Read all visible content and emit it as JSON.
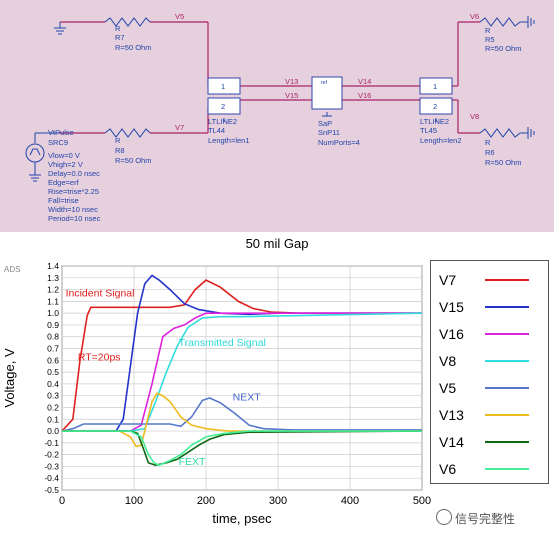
{
  "schematic": {
    "resistors": [
      {
        "id": "R7",
        "type_label": "R",
        "value": "R=50 Ohm"
      },
      {
        "id": "R8",
        "type_label": "R",
        "value": "R=50 Ohm"
      },
      {
        "id": "R5",
        "type_label": "R",
        "value": "R=50 Ohm"
      },
      {
        "id": "R6",
        "type_label": "R",
        "value": "R=50 Ohm"
      }
    ],
    "nodes": {
      "v5": "V5",
      "v7": "V7",
      "v13": "V13",
      "v15": "V15",
      "v14": "V14",
      "v16": "V16",
      "v6": "V6",
      "v8": "V8"
    },
    "source": {
      "type_label": "VtPulse",
      "id": "SRC9",
      "params": [
        "Vlow=0 V",
        "Vhigh=2 V",
        "Delay=0.0 nsec",
        "Edge=erf",
        "Rise=trise*2.25",
        "Fall=trise",
        "Width=10 nsec",
        "Period=10 nsec"
      ]
    },
    "tl44": {
      "type_label": "LTLINE2",
      "id": "TL44",
      "param": "Length=len1",
      "port1": "1",
      "port2": "2"
    },
    "tl45": {
      "type_label": "LTLINE2",
      "id": "TL45",
      "param": "Length=len2",
      "port1": "1",
      "port2": "2"
    },
    "sp": {
      "type_label": "SaP",
      "id": "SnP11",
      "param": "NumPorts=4",
      "ref": "ref"
    }
  },
  "caption": "50 mil Gap",
  "watermark": "信号完整性",
  "chart_data": {
    "type": "line",
    "corner_label": "ADS",
    "xlabel": "time, psec",
    "ylabel": "Voltage, V",
    "xlim": [
      0,
      500
    ],
    "ylim": [
      -0.5,
      1.4
    ],
    "xticks": [
      0,
      100,
      200,
      300,
      400,
      500
    ],
    "yticks": [
      1.4,
      1.3,
      1.2,
      1.1,
      1.0,
      0.9,
      0.8,
      0.7,
      0.6,
      0.5,
      0.4,
      0.3,
      0.2,
      0.1,
      0.0,
      -0.1,
      -0.2,
      -0.3,
      -0.4,
      -0.5
    ],
    "grid": true,
    "legend_position": "right",
    "annotations": [
      {
        "text": "Incident Signal",
        "x": 5,
        "y": 1.14,
        "color": "#e02020"
      },
      {
        "text": "RT=20ps",
        "x": 22,
        "y": 0.6,
        "color": "#e02020"
      },
      {
        "text": "Transmitted Signal",
        "x": 162,
        "y": 0.72,
        "color": "#2ed8d8"
      },
      {
        "text": "NEXT",
        "x": 237,
        "y": 0.26,
        "color": "#4466cc"
      },
      {
        "text": "FEXT",
        "x": 162,
        "y": -0.29,
        "color": "#2ed8a0"
      }
    ],
    "series": [
      {
        "name": "V7",
        "color": "#e02020",
        "points": [
          [
            0,
            0
          ],
          [
            15,
            0.1
          ],
          [
            25,
            0.6
          ],
          [
            35,
            0.98
          ],
          [
            40,
            1.05
          ],
          [
            60,
            1.05
          ],
          [
            110,
            1.05
          ],
          [
            130,
            1.05
          ],
          [
            150,
            1.05
          ],
          [
            170,
            1.07
          ],
          [
            185,
            1.2
          ],
          [
            200,
            1.28
          ],
          [
            220,
            1.22
          ],
          [
            245,
            1.1
          ],
          [
            265,
            1.04
          ],
          [
            290,
            1.01
          ],
          [
            330,
            1.0
          ],
          [
            500,
            1.0
          ]
        ]
      },
      {
        "name": "V15",
        "color": "#2233cc",
        "points": [
          [
            0,
            0
          ],
          [
            75,
            0
          ],
          [
            85,
            0.1
          ],
          [
            95,
            0.55
          ],
          [
            105,
            1.0
          ],
          [
            115,
            1.25
          ],
          [
            125,
            1.32
          ],
          [
            135,
            1.28
          ],
          [
            150,
            1.2
          ],
          [
            170,
            1.08
          ],
          [
            190,
            1.03
          ],
          [
            220,
            1.0
          ],
          [
            260,
            0.99
          ],
          [
            300,
            1.0
          ],
          [
            500,
            1.0
          ]
        ]
      },
      {
        "name": "V16",
        "color": "#dd22dd",
        "points": [
          [
            0,
            0
          ],
          [
            95,
            0
          ],
          [
            110,
            0.05
          ],
          [
            125,
            0.4
          ],
          [
            140,
            0.8
          ],
          [
            155,
            0.87
          ],
          [
            170,
            0.9
          ],
          [
            185,
            0.96
          ],
          [
            200,
            1.0
          ],
          [
            230,
            1.0
          ],
          [
            500,
            1.0
          ]
        ]
      },
      {
        "name": "V8",
        "color": "#33dddd",
        "points": [
          [
            0,
            0
          ],
          [
            95,
            0
          ],
          [
            115,
            0.02
          ],
          [
            130,
            0.25
          ],
          [
            145,
            0.5
          ],
          [
            160,
            0.72
          ],
          [
            175,
            0.88
          ],
          [
            195,
            0.96
          ],
          [
            220,
            0.97
          ],
          [
            250,
            0.97
          ],
          [
            500,
            1.0
          ]
        ]
      },
      {
        "name": "V5",
        "color": "#5577cc",
        "points": [
          [
            0,
            0
          ],
          [
            15,
            0.02
          ],
          [
            30,
            0.06
          ],
          [
            70,
            0.06
          ],
          [
            110,
            0.06
          ],
          [
            130,
            0.06
          ],
          [
            150,
            0.06
          ],
          [
            165,
            0.04
          ],
          [
            180,
            0.12
          ],
          [
            195,
            0.26
          ],
          [
            205,
            0.28
          ],
          [
            220,
            0.24
          ],
          [
            240,
            0.15
          ],
          [
            260,
            0.05
          ],
          [
            280,
            0.02
          ],
          [
            320,
            0.01
          ],
          [
            500,
            0.01
          ]
        ]
      },
      {
        "name": "V13",
        "color": "#eebb22",
        "points": [
          [
            0,
            0
          ],
          [
            80,
            0
          ],
          [
            95,
            -0.05
          ],
          [
            103,
            -0.13
          ],
          [
            110,
            -0.12
          ],
          [
            117,
            0.05
          ],
          [
            125,
            0.25
          ],
          [
            132,
            0.32
          ],
          [
            140,
            0.3
          ],
          [
            150,
            0.25
          ],
          [
            165,
            0.12
          ],
          [
            180,
            0.05
          ],
          [
            200,
            0.02
          ],
          [
            230,
            0.0
          ],
          [
            300,
            0.0
          ],
          [
            500,
            0.0
          ]
        ]
      },
      {
        "name": "V14",
        "color": "#116611",
        "points": [
          [
            0,
            0
          ],
          [
            95,
            0
          ],
          [
            105,
            -0.02
          ],
          [
            113,
            -0.15
          ],
          [
            120,
            -0.27
          ],
          [
            130,
            -0.29
          ],
          [
            145,
            -0.27
          ],
          [
            160,
            -0.24
          ],
          [
            175,
            -0.18
          ],
          [
            190,
            -0.12
          ],
          [
            205,
            -0.07
          ],
          [
            225,
            -0.03
          ],
          [
            260,
            -0.01
          ],
          [
            500,
            0.0
          ]
        ]
      },
      {
        "name": "V6",
        "color": "#44ee99",
        "points": [
          [
            0,
            0
          ],
          [
            95,
            0
          ],
          [
            110,
            -0.05
          ],
          [
            120,
            -0.2
          ],
          [
            128,
            -0.27
          ],
          [
            135,
            -0.29
          ],
          [
            150,
            -0.25
          ],
          [
            165,
            -0.2
          ],
          [
            180,
            -0.12
          ],
          [
            200,
            -0.05
          ],
          [
            225,
            -0.02
          ],
          [
            260,
            0.0
          ],
          [
            500,
            0.0
          ]
        ]
      }
    ]
  }
}
